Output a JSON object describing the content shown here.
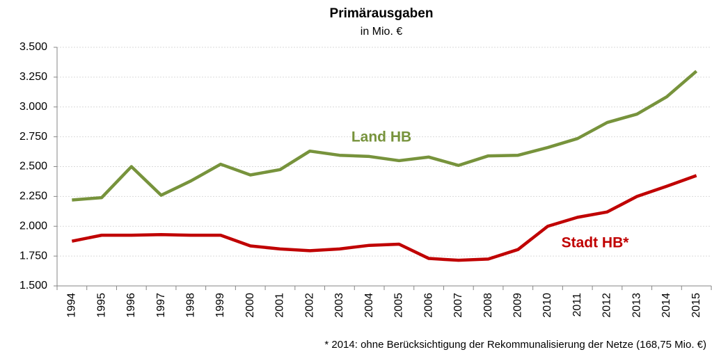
{
  "chart_data": {
    "type": "line",
    "title": "Primärausgaben",
    "subtitle": "in Mio. €",
    "categories": [
      "1994",
      "1995",
      "1996",
      "1997",
      "1998",
      "1999",
      "2000",
      "2001",
      "2002",
      "2003",
      "2004",
      "2005",
      "2006",
      "2007",
      "2008",
      "2009",
      "2010",
      "2011",
      "2012",
      "2013",
      "2014",
      "2015"
    ],
    "series": [
      {
        "name": "Land HB",
        "color": "#77933c",
        "values": [
          2220,
          2240,
          2500,
          2260,
          2380,
          2520,
          2430,
          2475,
          2630,
          2595,
          2585,
          2550,
          2580,
          2510,
          2590,
          2595,
          2660,
          2735,
          2870,
          2940,
          3085,
          3300
        ]
      },
      {
        "name": "Stadt HB*",
        "color": "#c00000",
        "values": [
          1875,
          1925,
          1925,
          1930,
          1925,
          1925,
          1835,
          1810,
          1795,
          1810,
          1840,
          1850,
          1730,
          1715,
          1725,
          1805,
          2000,
          2075,
          2120,
          2250,
          2335,
          2425
        ]
      }
    ],
    "ylim": [
      1500,
      3500
    ],
    "yticks": [
      {
        "value": 1500,
        "label": "1.500"
      },
      {
        "value": 1750,
        "label": "1.750"
      },
      {
        "value": 2000,
        "label": "2.000"
      },
      {
        "value": 2250,
        "label": "2.250"
      },
      {
        "value": 2500,
        "label": "2.500"
      },
      {
        "value": 2750,
        "label": "2.750"
      },
      {
        "value": 3000,
        "label": "3.000"
      },
      {
        "value": 3250,
        "label": "3.250"
      },
      {
        "value": 3500,
        "label": "3.500"
      }
    ],
    "grid": true,
    "footnote": "* 2014: ohne Berücksichtigung der Rekommunalisierung der Netze (168,75 Mio. €)"
  }
}
